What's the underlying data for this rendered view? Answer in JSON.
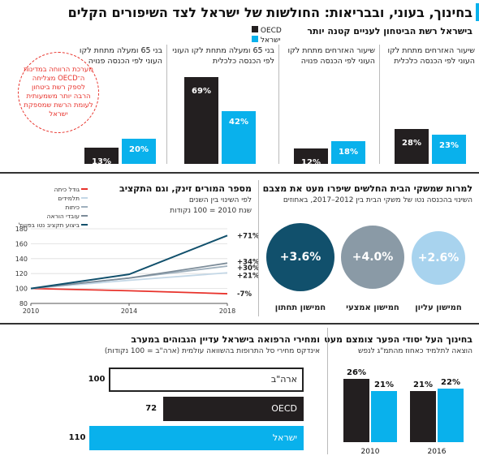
{
  "title": "בחינוך, בעוני, ובבריאות: החולשות של ישראל לצד השיפורים הקלים",
  "top": {
    "header": "בישראל רשת הביטחון לעניים קטנה יותר",
    "legend": {
      "oecd": "OECD",
      "israel": "ישראל"
    },
    "groups": [
      {
        "label": "שיעור האזרחים מתחת לקו העוני לפי הכנסה כלכלית",
        "oecd": 28,
        "israel": 23
      },
      {
        "label": "שיעור האזרחים מתחת לקו העוני לפי הכנסה פנויה",
        "oecd": 12,
        "israel": 18
      },
      {
        "label": "בני 65 ומעלה מתחת לקו העוני לפי הכנסה כלכלית",
        "oecd": 69,
        "israel": 42
      },
      {
        "label": "בני 65 ומעלה מתחת לקו העוני לפי הכנסה פנויה",
        "oecd": 13,
        "israel": 20
      }
    ],
    "note": "מערכת הרווחה במדינות ה־OECD מצליחה לספק רשת ביטחון הרבה יותר משמעותית לעומת הרשת שמספקת ישראל"
  },
  "bubbles": {
    "header": "למרות שמשקי הבית החלשים שיפרו מעט את מצבם",
    "sub": "השינוי בהכנסה נטו של משקי הבית בין 2012–2017, באחוזים",
    "items": [
      {
        "label": "חמישון עליון",
        "value": "+2.6%",
        "color": "#a8d3ee"
      },
      {
        "label": "חמישון אמצעי",
        "value": "+4.0%",
        "color": "#8a9aa6"
      },
      {
        "label": "חמישון תחתון",
        "value": "+3.6%",
        "color": "#11506c"
      }
    ]
  },
  "teachers": {
    "header": "מספר המורים זינק, וגם התקציב",
    "sub1": "לפי השינוי בין השנים",
    "sub2": "שנת 2010 = 100 נקודות",
    "legend": [
      "גודל כיתה",
      "תלמידים",
      "כיתות",
      "עובדי הוראה",
      "ביצוע תקציב נטו בפועל"
    ],
    "labels": [
      "+71%",
      "+34%",
      "+30%",
      "+21%",
      "-7%"
    ]
  },
  "education": {
    "header": "בחינוך העל יסודי הפער צומצם מעט",
    "sub": "הוצאה לתלמיד כאחוז מהתמ\"ג לנפש",
    "years": [
      "2010",
      "2016"
    ],
    "values": [
      {
        "oecd": "26%",
        "israel": "21%"
      },
      {
        "oecd": "21%",
        "israel": "22%"
      }
    ]
  },
  "prices": {
    "header": "ומחירי הרפואה בישראל עדיין הגבוהים במערב",
    "sub": "אינדקס מחירי סל התרופות בהשוואה עולמית (ארה\"ב = 100 נקודות)",
    "rows": [
      {
        "label": "ארה\"ב",
        "value": "100"
      },
      {
        "label": "OECD",
        "value": "72"
      },
      {
        "label": "ישראל",
        "value": "110"
      }
    ]
  },
  "chart_data": [
    {
      "type": "bar",
      "title": "בישראל רשת הביטחון לעניים קטנה יותר",
      "categories": [
        "שיעור האזרחים מתחת לקו העוני לפי הכנסה כלכלית",
        "שיעור האזרחים מתחת לקו העוני לפי הכנסה פנויה",
        "בני 65 ומעלה מתחת לקו העוני לפי הכנסה כלכלית",
        "בני 65 ומעלה מתחת לקו העוני לפי הכנסה פנויה"
      ],
      "series": [
        {
          "name": "OECD",
          "values": [
            28,
            12,
            69,
            13
          ]
        },
        {
          "name": "ישראל",
          "values": [
            23,
            18,
            42,
            20
          ]
        }
      ],
      "unit": "%"
    },
    {
      "type": "bar",
      "title": "למרות שמשקי הבית החלשים שיפרו מעט את מצבם",
      "categories": [
        "חמישון עליון",
        "חמישון אמצעי",
        "חמישון תחתון"
      ],
      "values": [
        2.6,
        4.0,
        3.6
      ],
      "unit": "%"
    },
    {
      "type": "line",
      "title": "מספר המורים זינק, וגם התקציב",
      "x": [
        2010,
        2014,
        2018
      ],
      "ylim": [
        80,
        180
      ],
      "yticks": [
        80,
        100,
        120,
        140,
        160,
        180
      ],
      "series": [
        {
          "name": "ביצוע תקציב נטו בפועל",
          "values": [
            100,
            119,
            171
          ],
          "color": "#11506c"
        },
        {
          "name": "עובדי הוראה",
          "values": [
            100,
            114,
            134
          ],
          "color": "#7c8c99"
        },
        {
          "name": "כיתות",
          "values": [
            100,
            114,
            130
          ],
          "color": "#9fb0bd"
        },
        {
          "name": "תלמידים",
          "values": [
            100,
            111,
            121
          ],
          "color": "#c3d7e6"
        },
        {
          "name": "גודל כיתה",
          "values": [
            100,
            97,
            93
          ],
          "color": "#e8322b"
        }
      ]
    },
    {
      "type": "bar",
      "title": "בחינוך העל יסודי הפער צומצם מעט",
      "categories": [
        "2010",
        "2016"
      ],
      "series": [
        {
          "name": "OECD",
          "values": [
            26,
            21
          ]
        },
        {
          "name": "ישראל",
          "values": [
            21,
            22
          ]
        }
      ],
      "unit": "%"
    },
    {
      "type": "bar",
      "title": "ומחירי הרפואה בישראל עדיין הגבוהים במערב",
      "categories": [
        "ארה\"ב",
        "OECD",
        "ישראל"
      ],
      "values": [
        100,
        72,
        110
      ]
    }
  ]
}
